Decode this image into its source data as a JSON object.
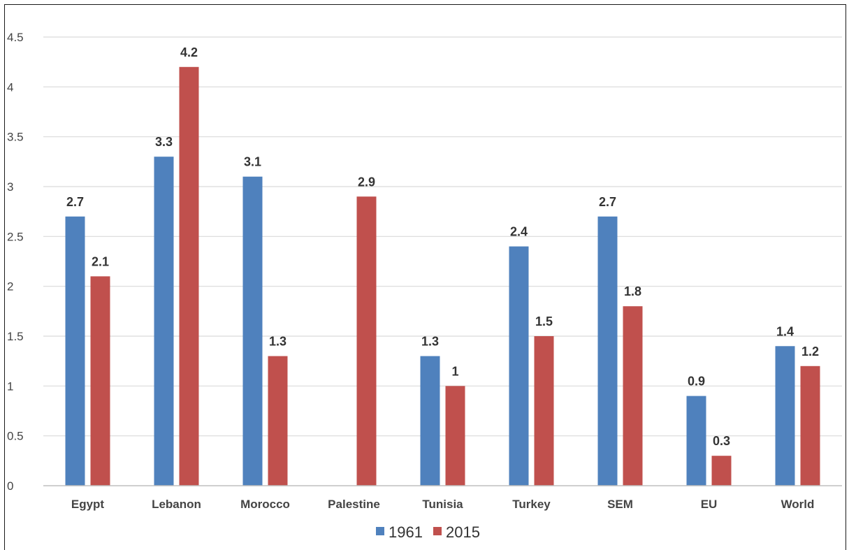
{
  "chart_data": {
    "type": "bar",
    "title": "",
    "xlabel": "",
    "ylabel": "",
    "categories": [
      "Egypt",
      "Lebanon",
      "Morocco",
      "Palestine",
      "Tunisia",
      "Turkey",
      "SEM",
      "EU",
      "World"
    ],
    "series": [
      {
        "name": "1961",
        "color": "#4f81bd",
        "values": [
          2.7,
          3.3,
          3.1,
          null,
          1.3,
          2.4,
          2.7,
          0.9,
          1.4
        ]
      },
      {
        "name": "2015",
        "color": "#c0504d",
        "values": [
          2.1,
          4.2,
          1.3,
          2.9,
          1,
          1.5,
          1.8,
          0.3,
          1.2
        ]
      }
    ],
    "ylim": [
      0,
      4.5
    ],
    "yticks": [
      "0",
      "0.5",
      "1",
      "1.5",
      "2",
      "2.5",
      "3",
      "3.5",
      "4",
      "4.5"
    ],
    "grid": true,
    "legend_position": "bottom-center"
  }
}
